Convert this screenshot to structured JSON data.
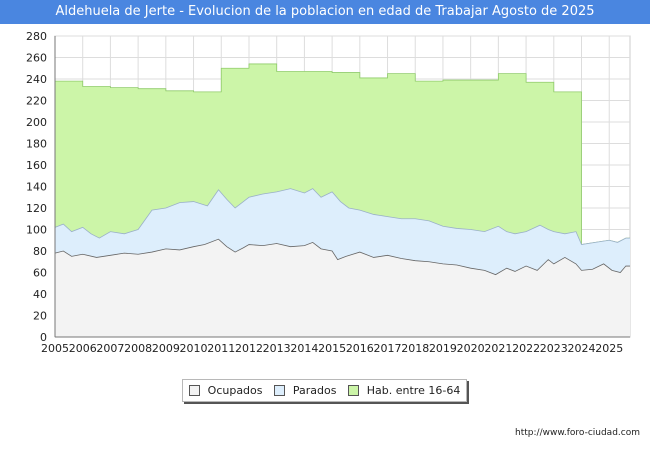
{
  "chart_data": {
    "type": "area",
    "title": "Aldehuela de Jerte - Evolucion de la poblacion en edad de Trabajar Agosto de 2025",
    "xlabel": "",
    "ylabel": "",
    "ylim": [
      0,
      280
    ],
    "xlim": [
      2005,
      2025.75
    ],
    "yticks": [
      "0",
      "20",
      "40",
      "60",
      "80",
      "100",
      "120",
      "140",
      "160",
      "180",
      "200",
      "220",
      "240",
      "260",
      "280"
    ],
    "xticks": [
      "2005",
      "2006",
      "2007",
      "2008",
      "2009",
      "2010",
      "2011",
      "2012",
      "2013",
      "2014",
      "2015",
      "2016",
      "2017",
      "2018",
      "2019",
      "2020",
      "2021",
      "2022",
      "2023",
      "2024",
      "2025"
    ],
    "grid": true,
    "legend_position": "bottom",
    "colors": {
      "hab": "#ccf5a8",
      "hab_line": "#8fcb6a",
      "parados": "#ddeefc",
      "parados_line": "#9ab0c8",
      "ocupados": "#f3f3f3",
      "ocupados_line": "#666666"
    },
    "series": [
      {
        "name": "Ocupados",
        "key": "ocupados",
        "points": [
          [
            2005,
            78
          ],
          [
            2005.3,
            80
          ],
          [
            2005.6,
            75
          ],
          [
            2006,
            77
          ],
          [
            2006.5,
            74
          ],
          [
            2007,
            76
          ],
          [
            2007.5,
            78
          ],
          [
            2008,
            77
          ],
          [
            2008.5,
            79
          ],
          [
            2009,
            82
          ],
          [
            2009.5,
            81
          ],
          [
            2010,
            84
          ],
          [
            2010.4,
            86
          ],
          [
            2010.9,
            91
          ],
          [
            2011.2,
            84
          ],
          [
            2011.5,
            79
          ],
          [
            2011.8,
            83
          ],
          [
            2012,
            86
          ],
          [
            2012.5,
            85
          ],
          [
            2013,
            87
          ],
          [
            2013.5,
            84
          ],
          [
            2014,
            85
          ],
          [
            2014.3,
            88
          ],
          [
            2014.6,
            82
          ],
          [
            2015,
            80
          ],
          [
            2015.2,
            72
          ],
          [
            2015.5,
            75
          ],
          [
            2016,
            79
          ],
          [
            2016.5,
            74
          ],
          [
            2017,
            76
          ],
          [
            2017.5,
            73
          ],
          [
            2018,
            71
          ],
          [
            2018.5,
            70
          ],
          [
            2019,
            68
          ],
          [
            2019.5,
            67
          ],
          [
            2020,
            64
          ],
          [
            2020.5,
            62
          ],
          [
            2020.9,
            58
          ],
          [
            2021.3,
            64
          ],
          [
            2021.6,
            61
          ],
          [
            2022,
            66
          ],
          [
            2022.4,
            62
          ],
          [
            2022.8,
            72
          ],
          [
            2023,
            68
          ],
          [
            2023.4,
            74
          ],
          [
            2023.8,
            68
          ],
          [
            2024,
            62
          ],
          [
            2024.4,
            63
          ],
          [
            2024.8,
            68
          ],
          [
            2025.1,
            62
          ],
          [
            2025.4,
            60
          ],
          [
            2025.6,
            66
          ]
        ]
      },
      {
        "name": "Parados",
        "key": "parados",
        "points": [
          [
            2005,
            102
          ],
          [
            2005.3,
            105
          ],
          [
            2005.6,
            98
          ],
          [
            2006,
            102
          ],
          [
            2006.3,
            96
          ],
          [
            2006.6,
            92
          ],
          [
            2007,
            98
          ],
          [
            2007.5,
            96
          ],
          [
            2008,
            100
          ],
          [
            2008.5,
            118
          ],
          [
            2009,
            120
          ],
          [
            2009.5,
            125
          ],
          [
            2010,
            126
          ],
          [
            2010.5,
            122
          ],
          [
            2010.9,
            137
          ],
          [
            2011.2,
            128
          ],
          [
            2011.5,
            120
          ],
          [
            2011.8,
            126
          ],
          [
            2012,
            130
          ],
          [
            2012.5,
            133
          ],
          [
            2013,
            135
          ],
          [
            2013.5,
            138
          ],
          [
            2014,
            134
          ],
          [
            2014.3,
            138
          ],
          [
            2014.6,
            130
          ],
          [
            2015,
            135
          ],
          [
            2015.3,
            126
          ],
          [
            2015.6,
            120
          ],
          [
            2016,
            118
          ],
          [
            2016.5,
            114
          ],
          [
            2017,
            112
          ],
          [
            2017.5,
            110
          ],
          [
            2018,
            110
          ],
          [
            2018.5,
            108
          ],
          [
            2019,
            103
          ],
          [
            2019.5,
            101
          ],
          [
            2020,
            100
          ],
          [
            2020.5,
            98
          ],
          [
            2021,
            103
          ],
          [
            2021.3,
            98
          ],
          [
            2021.6,
            96
          ],
          [
            2022,
            98
          ],
          [
            2022.5,
            104
          ],
          [
            2022.8,
            100
          ],
          [
            2023,
            98
          ],
          [
            2023.4,
            96
          ],
          [
            2023.8,
            98
          ],
          [
            2024,
            86
          ],
          [
            2024.5,
            88
          ],
          [
            2025,
            90
          ],
          [
            2025.3,
            88
          ],
          [
            2025.6,
            92
          ]
        ]
      },
      {
        "name": "Hab. entre 16-64",
        "key": "hab",
        "points": [
          [
            2005,
            238
          ],
          [
            2006,
            233
          ],
          [
            2007,
            232
          ],
          [
            2008,
            231
          ],
          [
            2009,
            229
          ],
          [
            2010,
            228
          ],
          [
            2011,
            250
          ],
          [
            2012,
            254
          ],
          [
            2013,
            247
          ],
          [
            2014,
            247
          ],
          [
            2015,
            246
          ],
          [
            2016,
            241
          ],
          [
            2017,
            245
          ],
          [
            2018,
            238
          ],
          [
            2019,
            239
          ],
          [
            2020,
            239
          ],
          [
            2021,
            245
          ],
          [
            2022,
            237
          ],
          [
            2023,
            228
          ],
          [
            2024,
            86
          ],
          [
            2024.5,
            88
          ],
          [
            2025,
            90
          ],
          [
            2025.3,
            88
          ],
          [
            2025.6,
            92
          ]
        ]
      }
    ]
  },
  "legend": {
    "ocupados": "Ocupados",
    "parados": "Parados",
    "hab": "Hab. entre 16-64"
  },
  "source": "http://www.foro-ciudad.com"
}
